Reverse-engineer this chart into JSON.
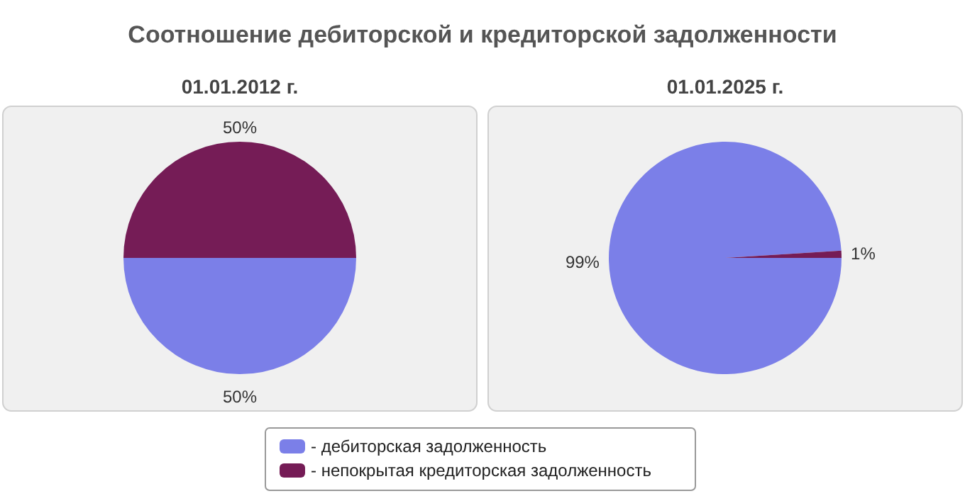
{
  "chart_data": [
    {
      "type": "pie",
      "title": "Соотношение дебиторской и кредиторской задолженности",
      "subtitle": "01.01.2012 г.",
      "categories": [
        "- дебиторская задолженность",
        "- непокрытая кредиторская задолженность"
      ],
      "values": [
        50,
        50
      ],
      "value_labels": [
        "50%",
        "50%"
      ],
      "colors": [
        "#7b7fe8",
        "#751c56"
      ],
      "legend": "bottom"
    },
    {
      "type": "pie",
      "subtitle": "01.01.2025 г.",
      "values": [
        99,
        1
      ],
      "value_labels": [
        "99%",
        "1%"
      ],
      "colors": [
        "#7b7fe8",
        "#751c56"
      ]
    }
  ]
}
